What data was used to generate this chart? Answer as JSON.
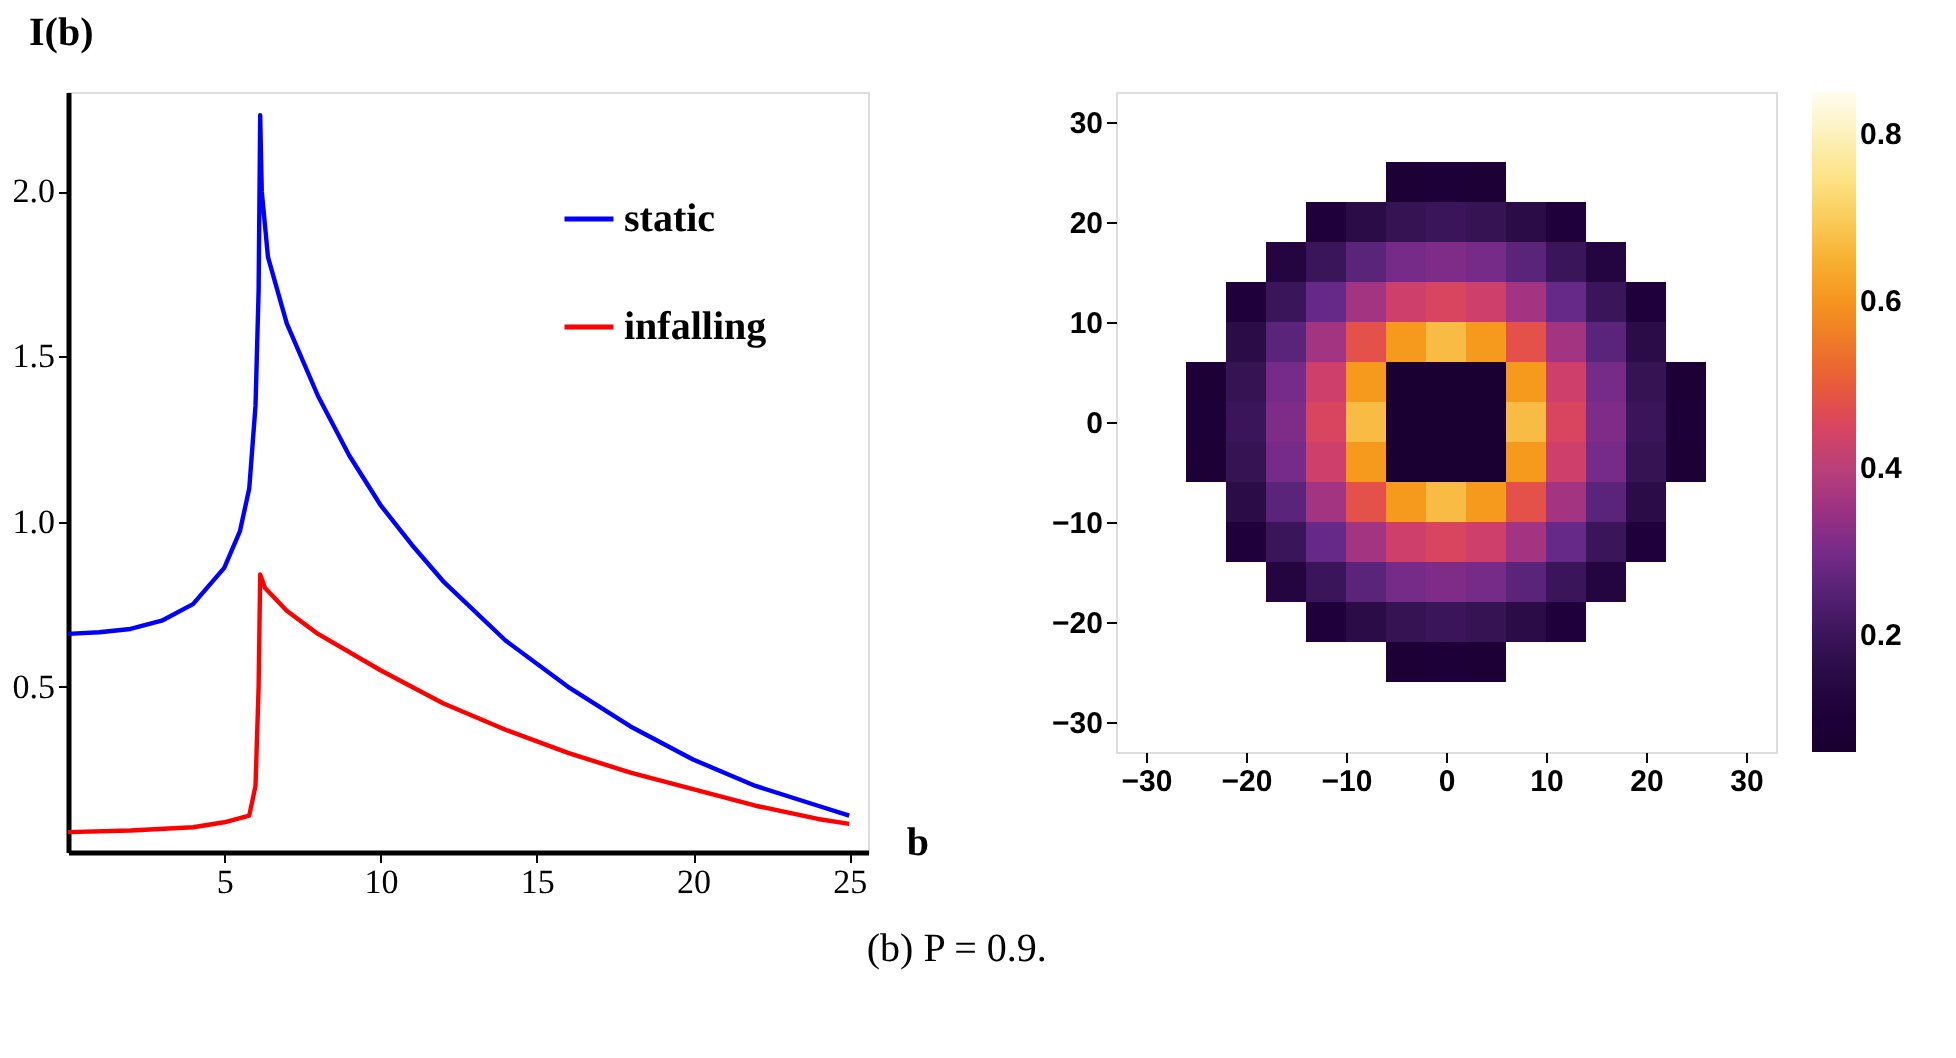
{
  "chart_data": [
    {
      "type": "line",
      "xlabel": "b",
      "ylabel": "I(b)",
      "xlim": [
        0,
        25.6
      ],
      "ylim": [
        0,
        2.3
      ],
      "xticks": [
        5,
        10,
        15,
        20,
        25
      ],
      "yticks": [
        0.5,
        {
          "value": 1,
          "label": "1.0"
        },
        1.5,
        {
          "value": 2,
          "label": "2.0"
        }
      ],
      "grid": false,
      "legend": "top right",
      "marker": "none",
      "line_style": "solid",
      "series": [
        {
          "name": "static",
          "color": "#0000ff",
          "x": [
            0,
            1,
            2,
            3,
            4,
            5,
            5.5,
            5.8,
            6.0,
            6.1,
            6.15,
            6.2,
            6.4,
            7,
            8,
            9,
            10,
            11,
            12,
            14,
            16,
            18,
            20,
            22,
            24,
            25
          ],
          "values": [
            0.66,
            0.665,
            0.675,
            0.7,
            0.75,
            0.86,
            0.97,
            1.1,
            1.35,
            1.7,
            2.23,
            2.0,
            1.8,
            1.6,
            1.38,
            1.2,
            1.05,
            0.93,
            0.82,
            0.64,
            0.5,
            0.38,
            0.28,
            0.2,
            0.14,
            0.11
          ]
        },
        {
          "name": "infalling",
          "color": "#ff0000",
          "x": [
            0,
            2,
            4,
            5,
            5.8,
            6.0,
            6.1,
            6.15,
            6.3,
            7,
            8,
            10,
            12,
            14,
            16,
            18,
            20,
            22,
            24,
            25
          ],
          "values": [
            0.06,
            0.065,
            0.075,
            0.09,
            0.11,
            0.2,
            0.5,
            0.84,
            0.8,
            0.73,
            0.66,
            0.55,
            0.45,
            0.37,
            0.3,
            0.24,
            0.19,
            0.14,
            0.1,
            0.085
          ]
        }
      ]
    },
    {
      "type": "heatmap",
      "xlim": [
        -33,
        33
      ],
      "ylim": [
        -33,
        33
      ],
      "xticks": [
        -30,
        -20,
        -10,
        0,
        10,
        20,
        30
      ],
      "yticks": [
        -30,
        -20,
        -10,
        0,
        10,
        20,
        30
      ],
      "clim": [
        0.06,
        0.85
      ],
      "cticks": [
        0.2,
        0.4,
        0.6,
        0.8
      ],
      "colors": [
        "#000000",
        "#2e0f4a",
        "#6a2a8a",
        "#b8407a",
        "#e8632e",
        "#f7a21c",
        "#fde07a",
        "#fffdf0"
      ],
      "x": [
        -24,
        -20,
        -16,
        -12,
        -8,
        -4,
        0,
        4,
        8,
        12,
        16,
        20,
        24
      ],
      "y": [
        24,
        20,
        16,
        12,
        8,
        4,
        0,
        -4,
        -8,
        -12,
        -16,
        -20,
        -24
      ],
      "cells": [
        [
          null,
          null,
          null,
          null,
          null,
          0.09,
          0.1,
          0.09,
          null,
          null,
          null,
          null,
          null
        ],
        [
          null,
          null,
          null,
          0.11,
          0.16,
          0.19,
          0.2,
          0.19,
          0.16,
          0.11,
          null,
          null,
          null
        ],
        [
          null,
          null,
          0.13,
          0.2,
          0.26,
          0.3,
          0.31,
          0.3,
          0.26,
          0.2,
          0.13,
          null,
          null
        ],
        [
          null,
          0.11,
          0.2,
          0.28,
          0.36,
          0.43,
          0.45,
          0.43,
          0.36,
          0.28,
          0.2,
          0.11,
          null
        ],
        [
          null,
          0.16,
          0.26,
          0.36,
          0.48,
          0.61,
          0.67,
          0.61,
          0.48,
          0.36,
          0.26,
          0.16,
          null
        ],
        [
          0.09,
          0.19,
          0.3,
          0.43,
          0.61,
          0.07,
          0.07,
          0.07,
          0.61,
          0.43,
          0.3,
          0.19,
          0.09
        ],
        [
          0.1,
          0.2,
          0.31,
          0.45,
          0.67,
          0.07,
          0.07,
          0.07,
          0.67,
          0.45,
          0.31,
          0.2,
          0.1
        ],
        [
          0.09,
          0.19,
          0.3,
          0.43,
          0.61,
          0.07,
          0.07,
          0.07,
          0.61,
          0.43,
          0.3,
          0.19,
          0.09
        ],
        [
          null,
          0.16,
          0.26,
          0.36,
          0.48,
          0.61,
          0.67,
          0.61,
          0.48,
          0.36,
          0.26,
          0.16,
          null
        ],
        [
          null,
          0.11,
          0.2,
          0.28,
          0.36,
          0.43,
          0.45,
          0.43,
          0.36,
          0.28,
          0.2,
          0.11,
          null
        ],
        [
          null,
          null,
          0.13,
          0.2,
          0.26,
          0.3,
          0.31,
          0.3,
          0.26,
          0.2,
          0.13,
          null,
          null
        ],
        [
          null,
          null,
          null,
          0.11,
          0.16,
          0.19,
          0.2,
          0.19,
          0.16,
          0.11,
          null,
          null,
          null
        ],
        [
          null,
          null,
          null,
          null,
          null,
          0.09,
          0.1,
          0.09,
          null,
          null,
          null,
          null,
          null
        ]
      ],
      "annotations": [
        "(b) P = 0.9."
      ]
    }
  ]
}
